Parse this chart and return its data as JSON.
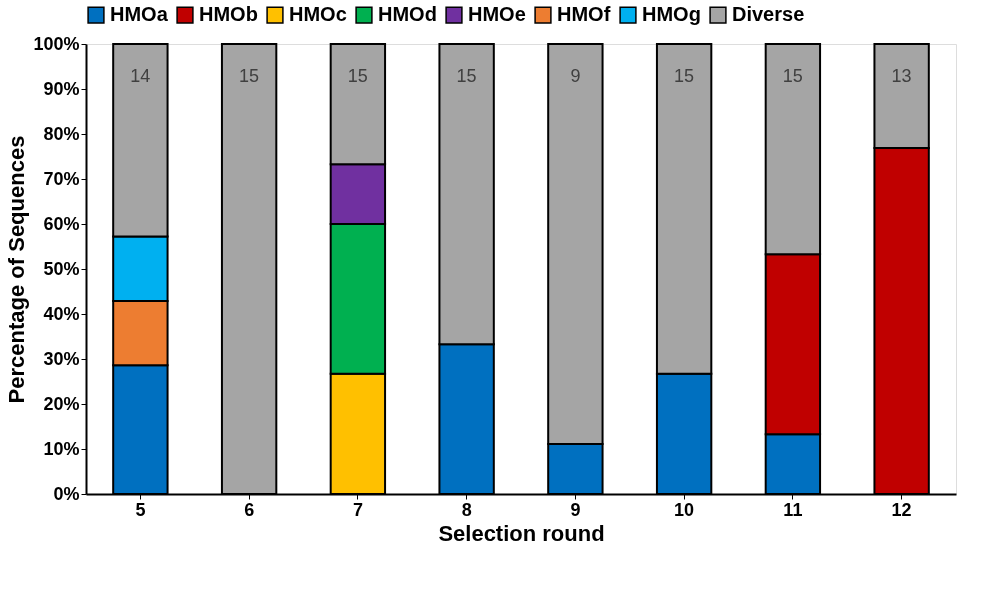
{
  "chart_data": {
    "type": "bar",
    "stacked": true,
    "xlabel": "Selection round",
    "ylabel": "Percentage of Sequences",
    "categories": [
      "5",
      "6",
      "7",
      "8",
      "9",
      "10",
      "11",
      "12"
    ],
    "series": [
      {
        "name": "HMOa",
        "color": "#0070c0",
        "values": [
          28.6,
          null,
          null,
          33.3,
          11.1,
          26.7,
          13.3,
          null
        ]
      },
      {
        "name": "HMOb",
        "color": "#c00000",
        "values": [
          null,
          null,
          null,
          null,
          null,
          null,
          40.0,
          76.9
        ]
      },
      {
        "name": "HMOc",
        "color": "#ffc000",
        "values": [
          null,
          null,
          26.7,
          null,
          null,
          null,
          null,
          null
        ]
      },
      {
        "name": "HMOd",
        "color": "#00b050",
        "values": [
          null,
          null,
          33.3,
          null,
          null,
          null,
          null,
          null
        ]
      },
      {
        "name": "HMOe",
        "color": "#7030a0",
        "values": [
          null,
          null,
          13.3,
          null,
          null,
          null,
          null,
          null
        ]
      },
      {
        "name": "HMOf",
        "color": "#ed7d31",
        "values": [
          14.3,
          null,
          null,
          null,
          null,
          null,
          null,
          null
        ]
      },
      {
        "name": "HMOg",
        "color": "#00b0f0",
        "values": [
          14.3,
          null,
          null,
          null,
          null,
          null,
          null,
          null
        ]
      },
      {
        "name": "Diverse",
        "color": "#a5a5a5",
        "values": [
          42.8,
          100,
          26.7,
          66.7,
          88.9,
          73.3,
          46.7,
          23.1
        ]
      }
    ],
    "annotations": [
      "14",
      "15",
      "15",
      "15",
      "9",
      "15",
      "15",
      "13"
    ],
    "ylim": [
      0,
      100
    ],
    "yticks": [
      {
        "value": 0,
        "label": "0%"
      },
      {
        "value": 10,
        "label": "10%"
      },
      {
        "value": 20,
        "label": "20%"
      },
      {
        "value": 30,
        "label": "30%"
      },
      {
        "value": 40,
        "label": "40%"
      },
      {
        "value": 50,
        "label": "50%"
      },
      {
        "value": 60,
        "label": "60%"
      },
      {
        "value": 70,
        "label": "70%"
      },
      {
        "value": 80,
        "label": "80%"
      },
      {
        "value": 90,
        "label": "90%"
      },
      {
        "value": 100,
        "label": "100%"
      }
    ],
    "grid": false,
    "legend": "top"
  }
}
